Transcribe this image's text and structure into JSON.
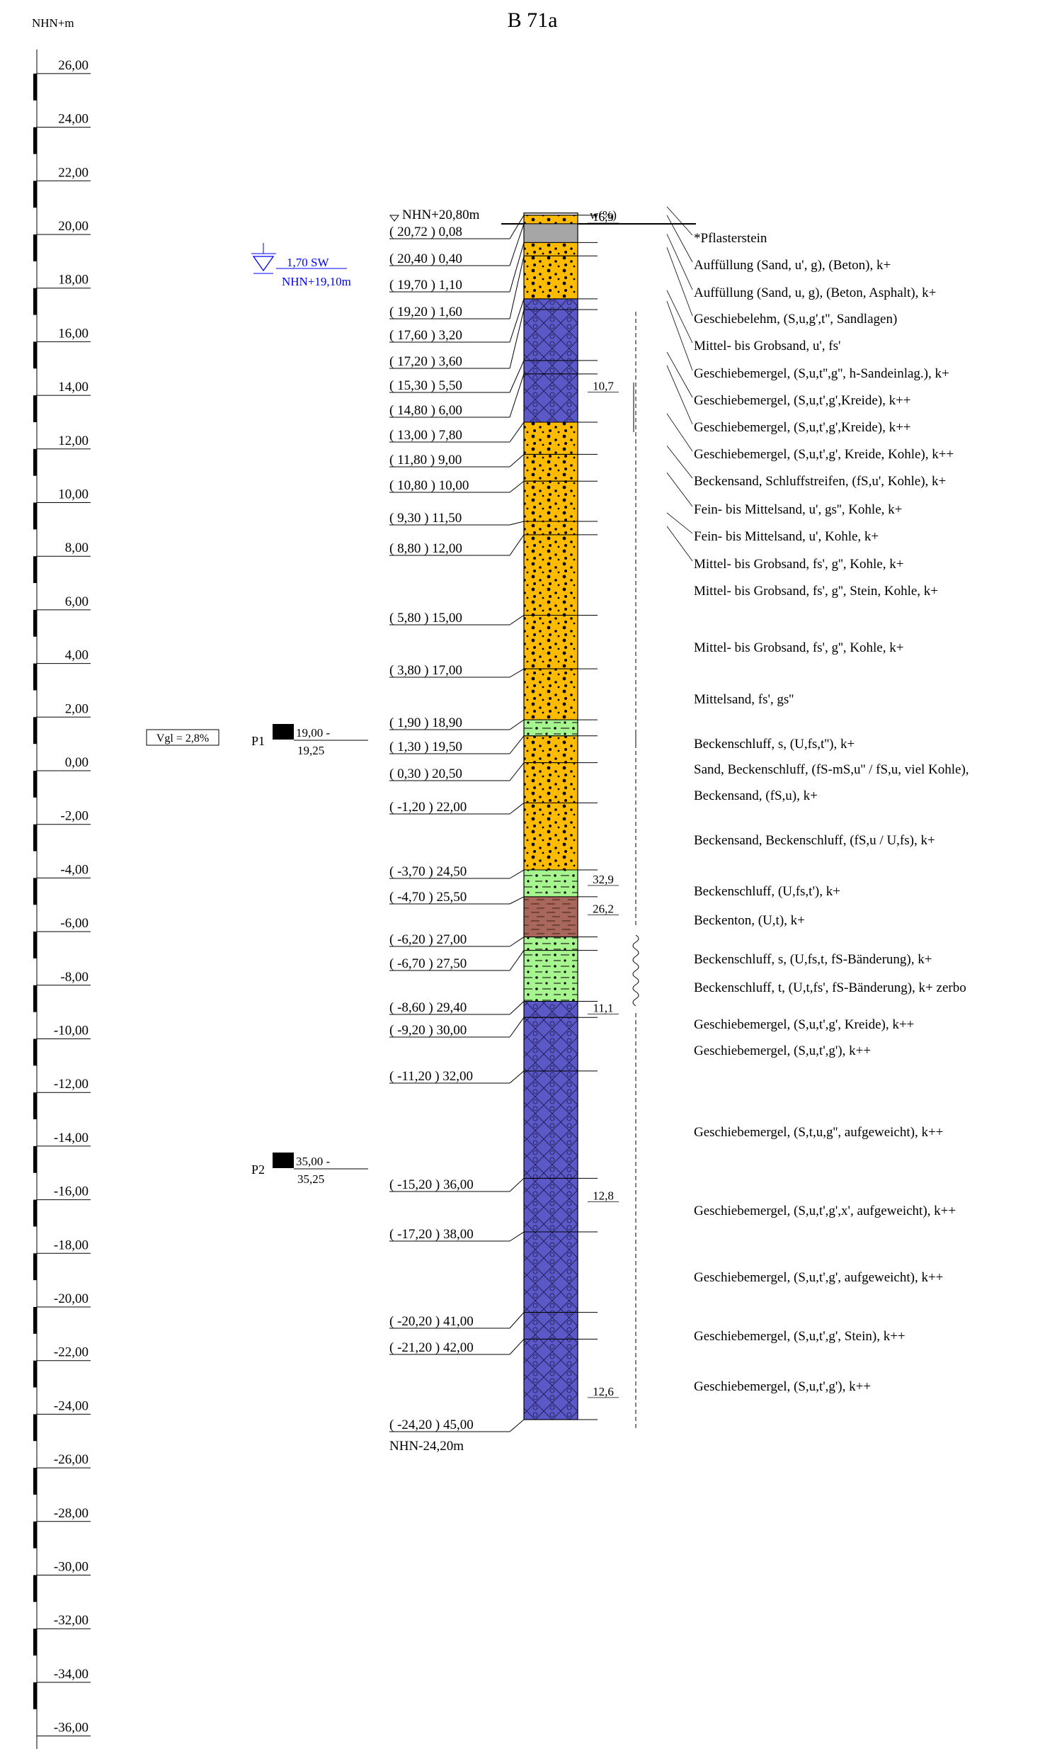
{
  "title": "B 71a",
  "elevation_axis": {
    "label": "NHN+m",
    "ticks": [
      "26,00",
      "24,00",
      "22,00",
      "20,00",
      "18,00",
      "16,00",
      "14,00",
      "12,00",
      "10,00",
      "8,00",
      "6,00",
      "4,00",
      "2,00",
      "0,00",
      "-2,00",
      "-4,00",
      "-6,00",
      "-8,00",
      "-10,00",
      "-12,00",
      "-14,00",
      "-16,00",
      "-18,00",
      "-20,00",
      "-22,00",
      "-24,00",
      "-26,00",
      "-28,00",
      "-30,00",
      "-32,00",
      "-34,00",
      "-36,00"
    ],
    "tick_values": [
      26,
      24,
      22,
      20,
      18,
      16,
      14,
      12,
      10,
      8,
      6,
      4,
      2,
      0,
      -2,
      -4,
      -6,
      -8,
      -10,
      -12,
      -14,
      -16,
      -18,
      -20,
      -22,
      -24,
      -26,
      -28,
      -30,
      -32,
      -34,
      -36
    ],
    "range": [
      -36.6,
      26.9
    ]
  },
  "ground": {
    "label": "NHN+20,80m",
    "elevation": 20.8
  },
  "water_col_label": "w(%)",
  "groundwater": {
    "depth_label": "1,70 SW",
    "elev_label": "NHN+19,10m",
    "elevation": 19.1
  },
  "gradient_note": "Vgl = 2,8%",
  "samples": [
    {
      "id": "P1",
      "top_label": "19,00 -",
      "bottom_label": "19,25",
      "elevation": 1.8
    },
    {
      "id": "P2",
      "top_label": "35,00 -",
      "bottom_label": "35,25",
      "elevation": -14.2
    }
  ],
  "bottom_label": "NHN-24,20m",
  "layers": [
    {
      "label": "( 20,72 ) 0,08",
      "bottom": 20.72,
      "fill": "#ffffff",
      "desc": "*Pflasterstein"
    },
    {
      "label": "( 20,40 ) 0,40",
      "bottom": 20.4,
      "fill": "#ffbb00",
      "desc": "Auffüllung (Sand, u', g), (Beton), k+"
    },
    {
      "label": "( 19,70 ) 1,10",
      "bottom": 19.7,
      "fill": "#a6a6a6",
      "desc": "Auffüllung (Sand, u, g), (Beton, Asphalt), k+"
    },
    {
      "label": "( 19,20 ) 1,60",
      "bottom": 19.2,
      "fill": "#ffbb00",
      "desc": "Geschiebelehm, (S,u,g',t'', Sandlagen)"
    },
    {
      "label": "( 17,60 ) 3,20",
      "bottom": 17.6,
      "fill": "#ffbb00",
      "desc": "Mittel- bis Grobsand, u', fs'"
    },
    {
      "label": "( 17,20 ) 3,60",
      "bottom": 17.2,
      "fill": "#5b58c8",
      "desc": "Geschiebemergel, (S,u,t'',g'', h-Sandeinlag.), k+"
    },
    {
      "label": "( 15,30 ) 5,50",
      "bottom": 15.3,
      "fill": "#5b58c8",
      "desc": "Geschiebemergel, (S,u,t',g',Kreide), k++"
    },
    {
      "label": "( 14,80 ) 6,00",
      "bottom": 14.8,
      "fill": "#5b58c8",
      "desc": "Geschiebemergel, (S,u,t',g',Kreide), k++"
    },
    {
      "label": "( 13,00 ) 7,80",
      "bottom": 13.0,
      "fill": "#5b58c8",
      "desc": "Geschiebemergel, (S,u,t',g', Kreide, Kohle), k++"
    },
    {
      "label": "( 11,80 ) 9,00",
      "bottom": 11.8,
      "fill": "#ffbb00",
      "desc": "Beckensand, Schluffstreifen, (fS,u', Kohle), k+"
    },
    {
      "label": "( 10,80 ) 10,00",
      "bottom": 10.8,
      "fill": "#ffbb00",
      "desc": "Fein- bis Mittelsand, u', gs'', Kohle, k+"
    },
    {
      "label": "( 9,30 ) 11,50",
      "bottom": 9.3,
      "fill": "#ffbb00",
      "desc": "Fein- bis Mittelsand, u', Kohle, k+"
    },
    {
      "label": "( 8,80 ) 12,00",
      "bottom": 8.8,
      "fill": "#ffbb00",
      "desc": "Mittel- bis Grobsand, fs', g'', Kohle, k+"
    },
    {
      "label": "( 5,80 ) 15,00",
      "bottom": 5.8,
      "fill": "#ffbb00",
      "desc": "Mittel- bis Grobsand, fs', g'', Stein, Kohle, k+"
    },
    {
      "label": "( 3,80 ) 17,00",
      "bottom": 3.8,
      "fill": "#ffbb00",
      "desc": "Mittel- bis Grobsand, fs', g'', Kohle, k+"
    },
    {
      "label": "( 1,90 ) 18,90",
      "bottom": 1.9,
      "fill": "#ffbb00",
      "desc": "Mittelsand, fs', gs''"
    },
    {
      "label": "( 1,30 ) 19,50",
      "bottom": 1.3,
      "fill": "#a6f58f",
      "desc": "Beckenschluff, s, (U,fs,t''), k+"
    },
    {
      "label": "( 0,30 ) 20,50",
      "bottom": 0.3,
      "fill": "#ffbb00",
      "desc": "Sand, Beckenschluff, (fS-mS,u'' / fS,u, viel Kohle),"
    },
    {
      "label": "( -1,20 ) 22,00",
      "bottom": -1.2,
      "fill": "#ffbb00",
      "desc": "Beckensand, (fS,u), k+"
    },
    {
      "label": "( -3,70 ) 24,50",
      "bottom": -3.7,
      "fill": "#ffbb00",
      "desc": "Beckensand, Beckenschluff, (fS,u / U,fs), k+"
    },
    {
      "label": "( -4,70 ) 25,50",
      "bottom": -4.7,
      "fill": "#a6f58f",
      "desc": "Beckenschluff, (U,fs,t'), k+"
    },
    {
      "label": "( -6,20 ) 27,00",
      "bottom": -6.2,
      "fill": "#a8675a",
      "desc": "Beckenton, (U,t), k+"
    },
    {
      "label": "( -6,70 ) 27,50",
      "bottom": -6.7,
      "fill": "#a6f58f",
      "desc": "Beckenschluff, s, (U,fs,t, fS-Bänderung), k+"
    },
    {
      "label": "( -8,60 ) 29,40",
      "bottom": -8.6,
      "fill": "#a6f58f",
      "desc": "Beckenschluff, t, (U,t,fs', fS-Bänderung),  k+  zerbo"
    },
    {
      "label": "( -9,20 ) 30,00",
      "bottom": -9.2,
      "fill": "#5b58c8",
      "desc": "Geschiebemergel, (S,u,t',g', Kreide), k++"
    },
    {
      "label": "( -11,20 ) 32,00",
      "bottom": -11.2,
      "fill": "#5b58c8",
      "desc": "Geschiebemergel, (S,u,t',g'), k++"
    },
    {
      "label": "( -15,20 ) 36,00",
      "bottom": -15.2,
      "fill": "#5b58c8",
      "desc": "Geschiebemergel, (S,t,u,g'', aufgeweicht), k++"
    },
    {
      "label": "( -17,20 ) 38,00",
      "bottom": -17.2,
      "fill": "#5b58c8",
      "desc": "Geschiebemergel, (S,u,t',g',x', aufgeweicht), k++"
    },
    {
      "label": "( -20,20 ) 41,00",
      "bottom": -20.2,
      "fill": "#5b58c8",
      "desc": "Geschiebemergel, (S,u,t',g', aufgeweicht), k++"
    },
    {
      "label": "( -21,20 ) 42,00",
      "bottom": -21.2,
      "fill": "#5b58c8",
      "desc": "Geschiebemergel, (S,u,t',g', Stein), k++"
    },
    {
      "label": "( -24,20 ) 45,00",
      "bottom": -24.2,
      "fill": "#5b58c8",
      "desc": "Geschiebemergel, (S,u,t',g'), k++"
    }
  ],
  "water_contents": [
    {
      "value": "16,9",
      "elevation": 20.5
    },
    {
      "value": "10,7",
      "elevation": 14.2
    },
    {
      "value": "32,9",
      "elevation": -4.2
    },
    {
      "value": "26,2",
      "elevation": -5.3
    },
    {
      "value": "11,1",
      "elevation": -9.0
    },
    {
      "value": "12,8",
      "elevation": -16.0
    },
    {
      "value": "12,6",
      "elevation": -23.3
    }
  ]
}
